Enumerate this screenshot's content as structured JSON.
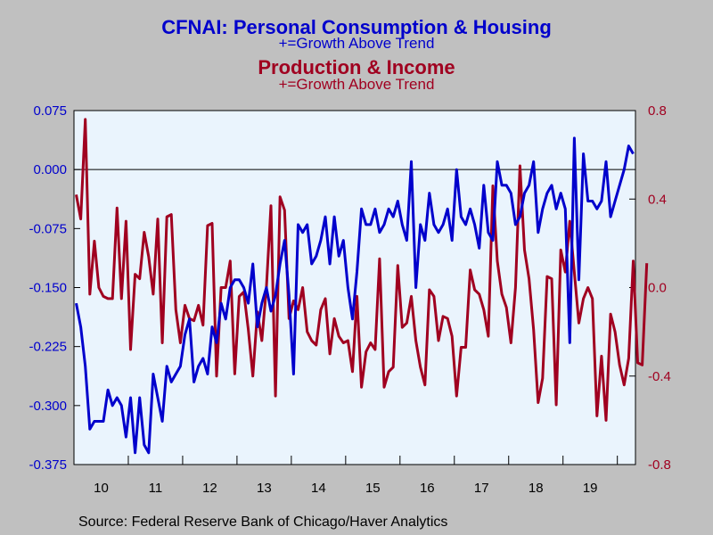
{
  "colors": {
    "blue": "#0000cc",
    "red": "#a00020",
    "plot_bg": "#eaf4fd",
    "page_bg": "#c0c0c0"
  },
  "titles": {
    "series1_title": "CFNAI: Personal Consumption & Housing",
    "series1_subtitle": "+=Growth Above Trend",
    "series2_title": "Production & Income",
    "series2_subtitle": "+=Growth Above Trend"
  },
  "source": "Source:  Federal Reserve Bank of Chicago/Haver Analytics",
  "chart_data": {
    "type": "line",
    "x_start": "2010-01",
    "x_frequency": "monthly",
    "x_tick_labels": [
      "10",
      "11",
      "12",
      "13",
      "14",
      "15",
      "16",
      "17",
      "18",
      "19"
    ],
    "left_axis": {
      "ylim": [
        -0.375,
        0.075
      ],
      "ticks": [
        "0.075",
        "0.000",
        "-0.075",
        "-0.150",
        "-0.225",
        "-0.300",
        "-0.375"
      ],
      "tick_values": [
        0.075,
        0.0,
        -0.075,
        -0.15,
        -0.225,
        -0.3,
        -0.375
      ]
    },
    "right_axis": {
      "ylim": [
        -0.8,
        0.8
      ],
      "ticks": [
        "0.8",
        "0.4",
        "0.0",
        "-0.4",
        "-0.8"
      ],
      "tick_values": [
        0.8,
        0.4,
        0.0,
        -0.4,
        -0.8
      ]
    },
    "series": [
      {
        "name": "CFNAI: Personal Consumption & Housing",
        "axis": "left",
        "color": "#0000cc",
        "values": [
          -0.17,
          -0.2,
          -0.25,
          -0.33,
          -0.32,
          -0.32,
          -0.32,
          -0.28,
          -0.3,
          -0.29,
          -0.3,
          -0.34,
          -0.29,
          -0.36,
          -0.29,
          -0.35,
          -0.36,
          -0.26,
          -0.29,
          -0.32,
          -0.25,
          -0.27,
          -0.26,
          -0.25,
          -0.21,
          -0.19,
          -0.27,
          -0.25,
          -0.24,
          -0.26,
          -0.2,
          -0.22,
          -0.17,
          -0.19,
          -0.15,
          -0.14,
          -0.14,
          -0.15,
          -0.17,
          -0.12,
          -0.2,
          -0.17,
          -0.15,
          -0.18,
          -0.16,
          -0.12,
          -0.09,
          -0.16,
          -0.26,
          -0.07,
          -0.08,
          -0.07,
          -0.12,
          -0.11,
          -0.09,
          -0.06,
          -0.12,
          -0.06,
          -0.11,
          -0.09,
          -0.15,
          -0.19,
          -0.13,
          -0.05,
          -0.07,
          -0.07,
          -0.05,
          -0.08,
          -0.07,
          -0.05,
          -0.06,
          -0.04,
          -0.07,
          -0.09,
          0.01,
          -0.15,
          -0.07,
          -0.09,
          -0.03,
          -0.07,
          -0.08,
          -0.07,
          -0.05,
          -0.09,
          0.0,
          -0.06,
          -0.07,
          -0.05,
          -0.07,
          -0.1,
          -0.02,
          -0.08,
          -0.09,
          0.01,
          -0.02,
          -0.02,
          -0.03,
          -0.07,
          -0.06,
          -0.03,
          -0.02,
          0.01,
          -0.08,
          -0.05,
          -0.03,
          -0.02,
          -0.05,
          -0.03,
          -0.05,
          -0.22,
          0.04,
          -0.14,
          0.02,
          -0.04,
          -0.04,
          -0.05,
          -0.04,
          0.01,
          -0.06,
          -0.04,
          -0.02,
          0.0,
          0.03,
          0.02
        ]
      },
      {
        "name": "Production & Income",
        "axis": "right",
        "color": "#a00020",
        "values": [
          0.42,
          0.31,
          0.76,
          -0.03,
          0.21,
          0.0,
          -0.04,
          -0.05,
          -0.05,
          0.36,
          -0.05,
          0.3,
          -0.28,
          0.06,
          0.04,
          0.25,
          0.14,
          -0.03,
          0.31,
          -0.25,
          0.32,
          0.33,
          -0.1,
          -0.25,
          -0.08,
          -0.14,
          -0.15,
          -0.08,
          -0.17,
          0.28,
          0.29,
          -0.4,
          0.0,
          0.0,
          0.12,
          -0.39,
          -0.04,
          -0.02,
          -0.19,
          -0.4,
          -0.11,
          -0.24,
          0.0,
          0.37,
          -0.49,
          0.41,
          0.35,
          -0.14,
          -0.06,
          -0.1,
          0.0,
          -0.2,
          -0.24,
          -0.26,
          -0.1,
          -0.05,
          -0.3,
          -0.14,
          -0.22,
          -0.25,
          -0.24,
          -0.38,
          -0.04,
          -0.45,
          -0.29,
          -0.25,
          -0.28,
          0.13,
          -0.45,
          -0.38,
          -0.36,
          0.1,
          -0.18,
          -0.16,
          -0.04,
          -0.24,
          -0.36,
          -0.44,
          -0.01,
          -0.04,
          -0.24,
          -0.13,
          -0.14,
          -0.22,
          -0.49,
          -0.27,
          -0.27,
          0.08,
          -0.01,
          -0.03,
          -0.1,
          -0.22,
          0.46,
          0.12,
          -0.03,
          -0.09,
          -0.25,
          0.0,
          0.55,
          0.17,
          0.04,
          -0.19,
          -0.52,
          -0.41,
          0.05,
          0.04,
          -0.53,
          0.17,
          0.07,
          0.3,
          0.07,
          -0.16,
          -0.05,
          0.0,
          -0.05,
          -0.58,
          -0.31,
          -0.6,
          -0.12,
          -0.2,
          -0.35,
          -0.44,
          -0.32,
          0.12,
          -0.34,
          -0.35,
          0.11
        ]
      }
    ]
  }
}
